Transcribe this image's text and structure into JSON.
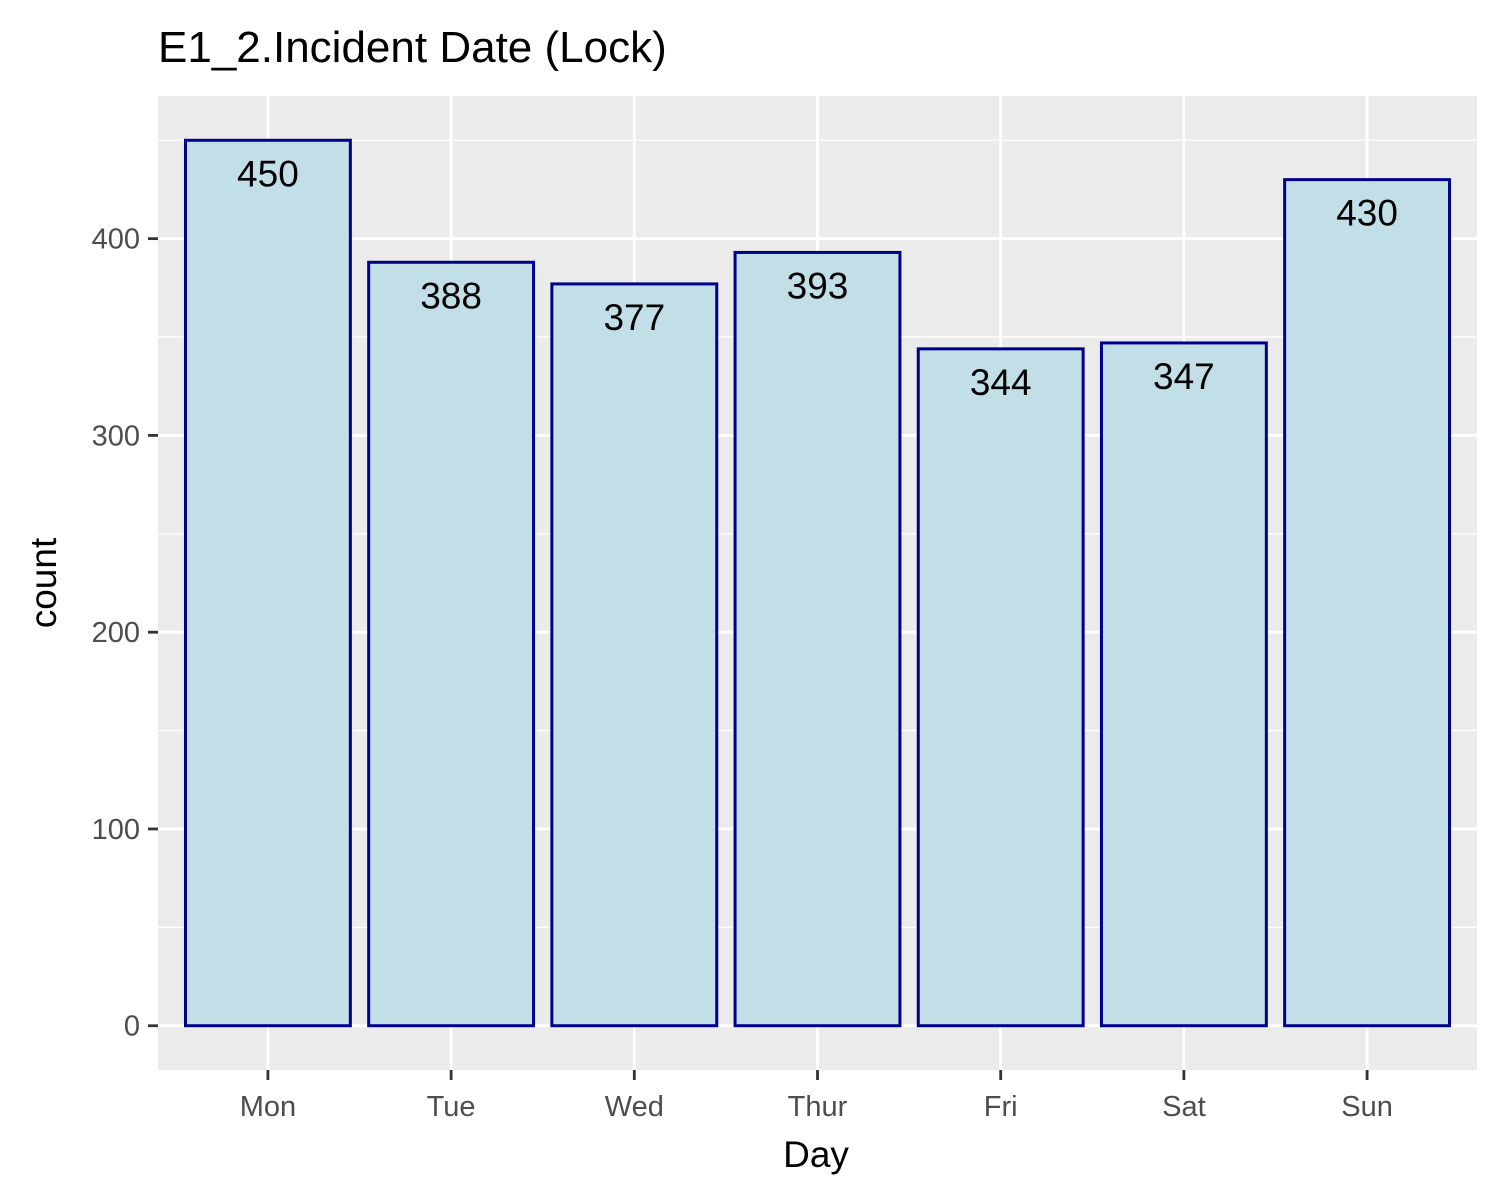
{
  "chart_data": {
    "type": "bar",
    "title": "E1_2.Incident Date (Lock)",
    "xlabel": "Day",
    "ylabel": "count",
    "categories": [
      "Mon",
      "Tue",
      "Wed",
      "Thur",
      "Fri",
      "Sat",
      "Sun"
    ],
    "values": [
      450,
      388,
      377,
      393,
      344,
      347,
      430
    ],
    "ylim": [
      -22.5,
      472.5
    ],
    "yticks": [
      0,
      100,
      200,
      300,
      400
    ],
    "ytick_labels": [
      "0",
      "100",
      "200",
      "300",
      "400"
    ],
    "grid": true,
    "legend": "none",
    "colors": {
      "panel_background": "#ebebeb",
      "gridline": "#ffffff",
      "bar_fill": "#c2dfe8",
      "bar_outline": "#00008b",
      "tick_label": "#4d4d4d",
      "tick_mark": "#333333",
      "text": "#000000"
    }
  }
}
